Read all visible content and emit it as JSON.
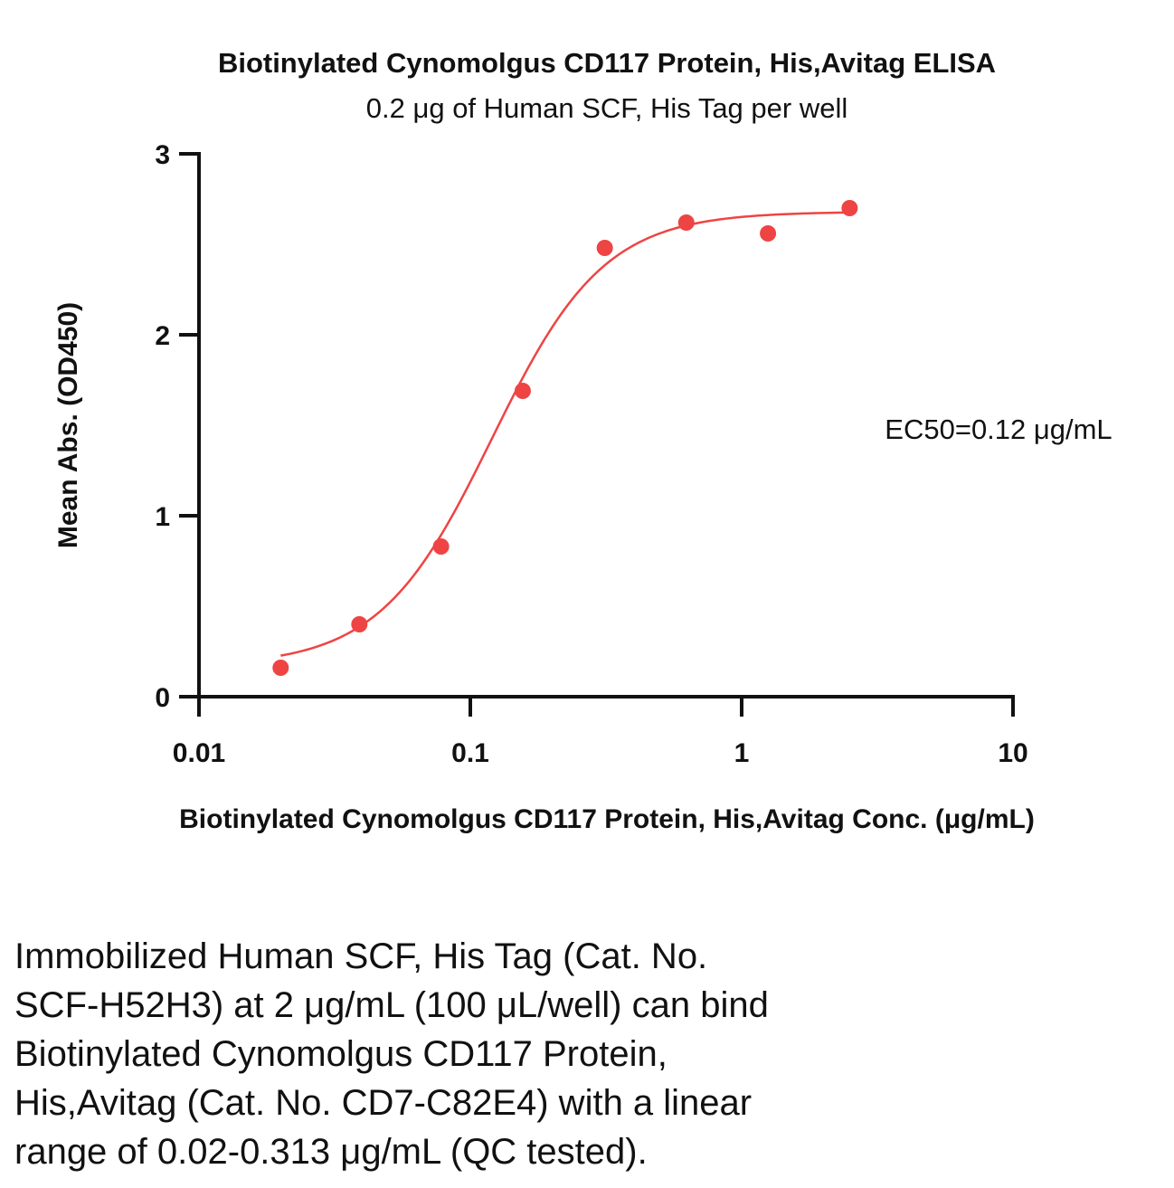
{
  "chart_data": {
    "type": "scatter",
    "title": "Biotinylated Cynomolgus CD117 Protein, His,Avitag ELISA",
    "subtitle": "0.2 μg of Human SCF, His Tag per well",
    "xlabel": "Biotinylated Cynomolgus CD117 Protein, His,Avitag Conc. (μg/mL)",
    "ylabel": "Mean Abs. (OD450)",
    "xscale": "log",
    "xlim": [
      0.01,
      10
    ],
    "ylim": [
      0,
      3
    ],
    "xticks": [
      "0.01",
      "0.1",
      "1",
      "10"
    ],
    "yticks": [
      "0",
      "1",
      "2",
      "3"
    ],
    "grid": false,
    "legend": "none",
    "color": "#ee4444",
    "series": [
      {
        "x": [
          0.02,
          0.039,
          0.078,
          0.156,
          0.313,
          0.625,
          1.25,
          2.5
        ],
        "y": [
          0.16,
          0.4,
          0.83,
          1.69,
          2.48,
          2.62,
          2.56,
          2.7
        ]
      }
    ],
    "fit": {
      "model": "4PL",
      "bottom": 0.17,
      "top": 2.68,
      "ec50": 0.12,
      "hill": 2.1,
      "x_range": [
        0.02,
        2.5
      ]
    },
    "annotation": "EC50=0.12 μg/mL"
  },
  "caption_lines": [
    "Immobilized Human SCF, His Tag (Cat. No.",
    "SCF-H52H3) at 2 μg/mL (100 μL/well) can bind",
    "Biotinylated Cynomolgus CD117 Protein,",
    "His,Avitag (Cat. No. CD7-C82E4) with a linear",
    "range of 0.02-0.313 μg/mL (QC tested)."
  ]
}
